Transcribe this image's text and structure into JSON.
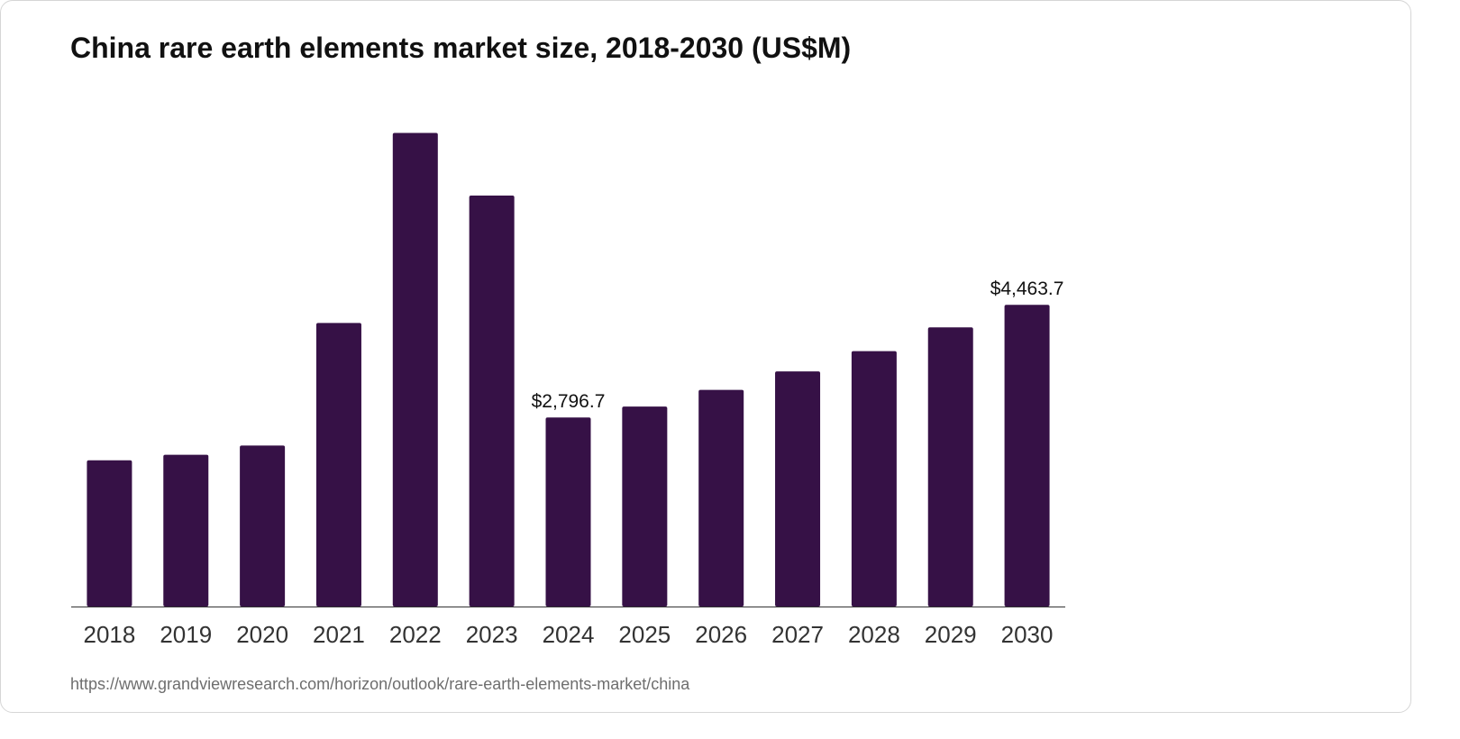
{
  "chart_data": {
    "type": "bar",
    "title": "China rare earth elements market size, 2018-2030 (US$M)",
    "categories": [
      "2018",
      "2019",
      "2020",
      "2021",
      "2022",
      "2023",
      "2024",
      "2025",
      "2026",
      "2027",
      "2028",
      "2029",
      "2030"
    ],
    "values": [
      2164,
      2245,
      2381,
      4195,
      7007,
      6080,
      2796.7,
      2958,
      3205,
      3478,
      3779,
      4130,
      4463.7
    ],
    "value_labels": [
      "",
      "",
      "",
      "",
      "",
      "",
      "$2,796.7",
      "",
      "",
      "",
      "",
      "",
      "$4,463.7"
    ],
    "ylim": [
      0,
      7200
    ],
    "xlabel": "",
    "ylabel": "",
    "grid": false,
    "bar_color": "#361146",
    "axis_color": "#333333"
  },
  "source_url": "https://www.grandviewresearch.com/horizon/outlook/rare-earth-elements-market/china"
}
